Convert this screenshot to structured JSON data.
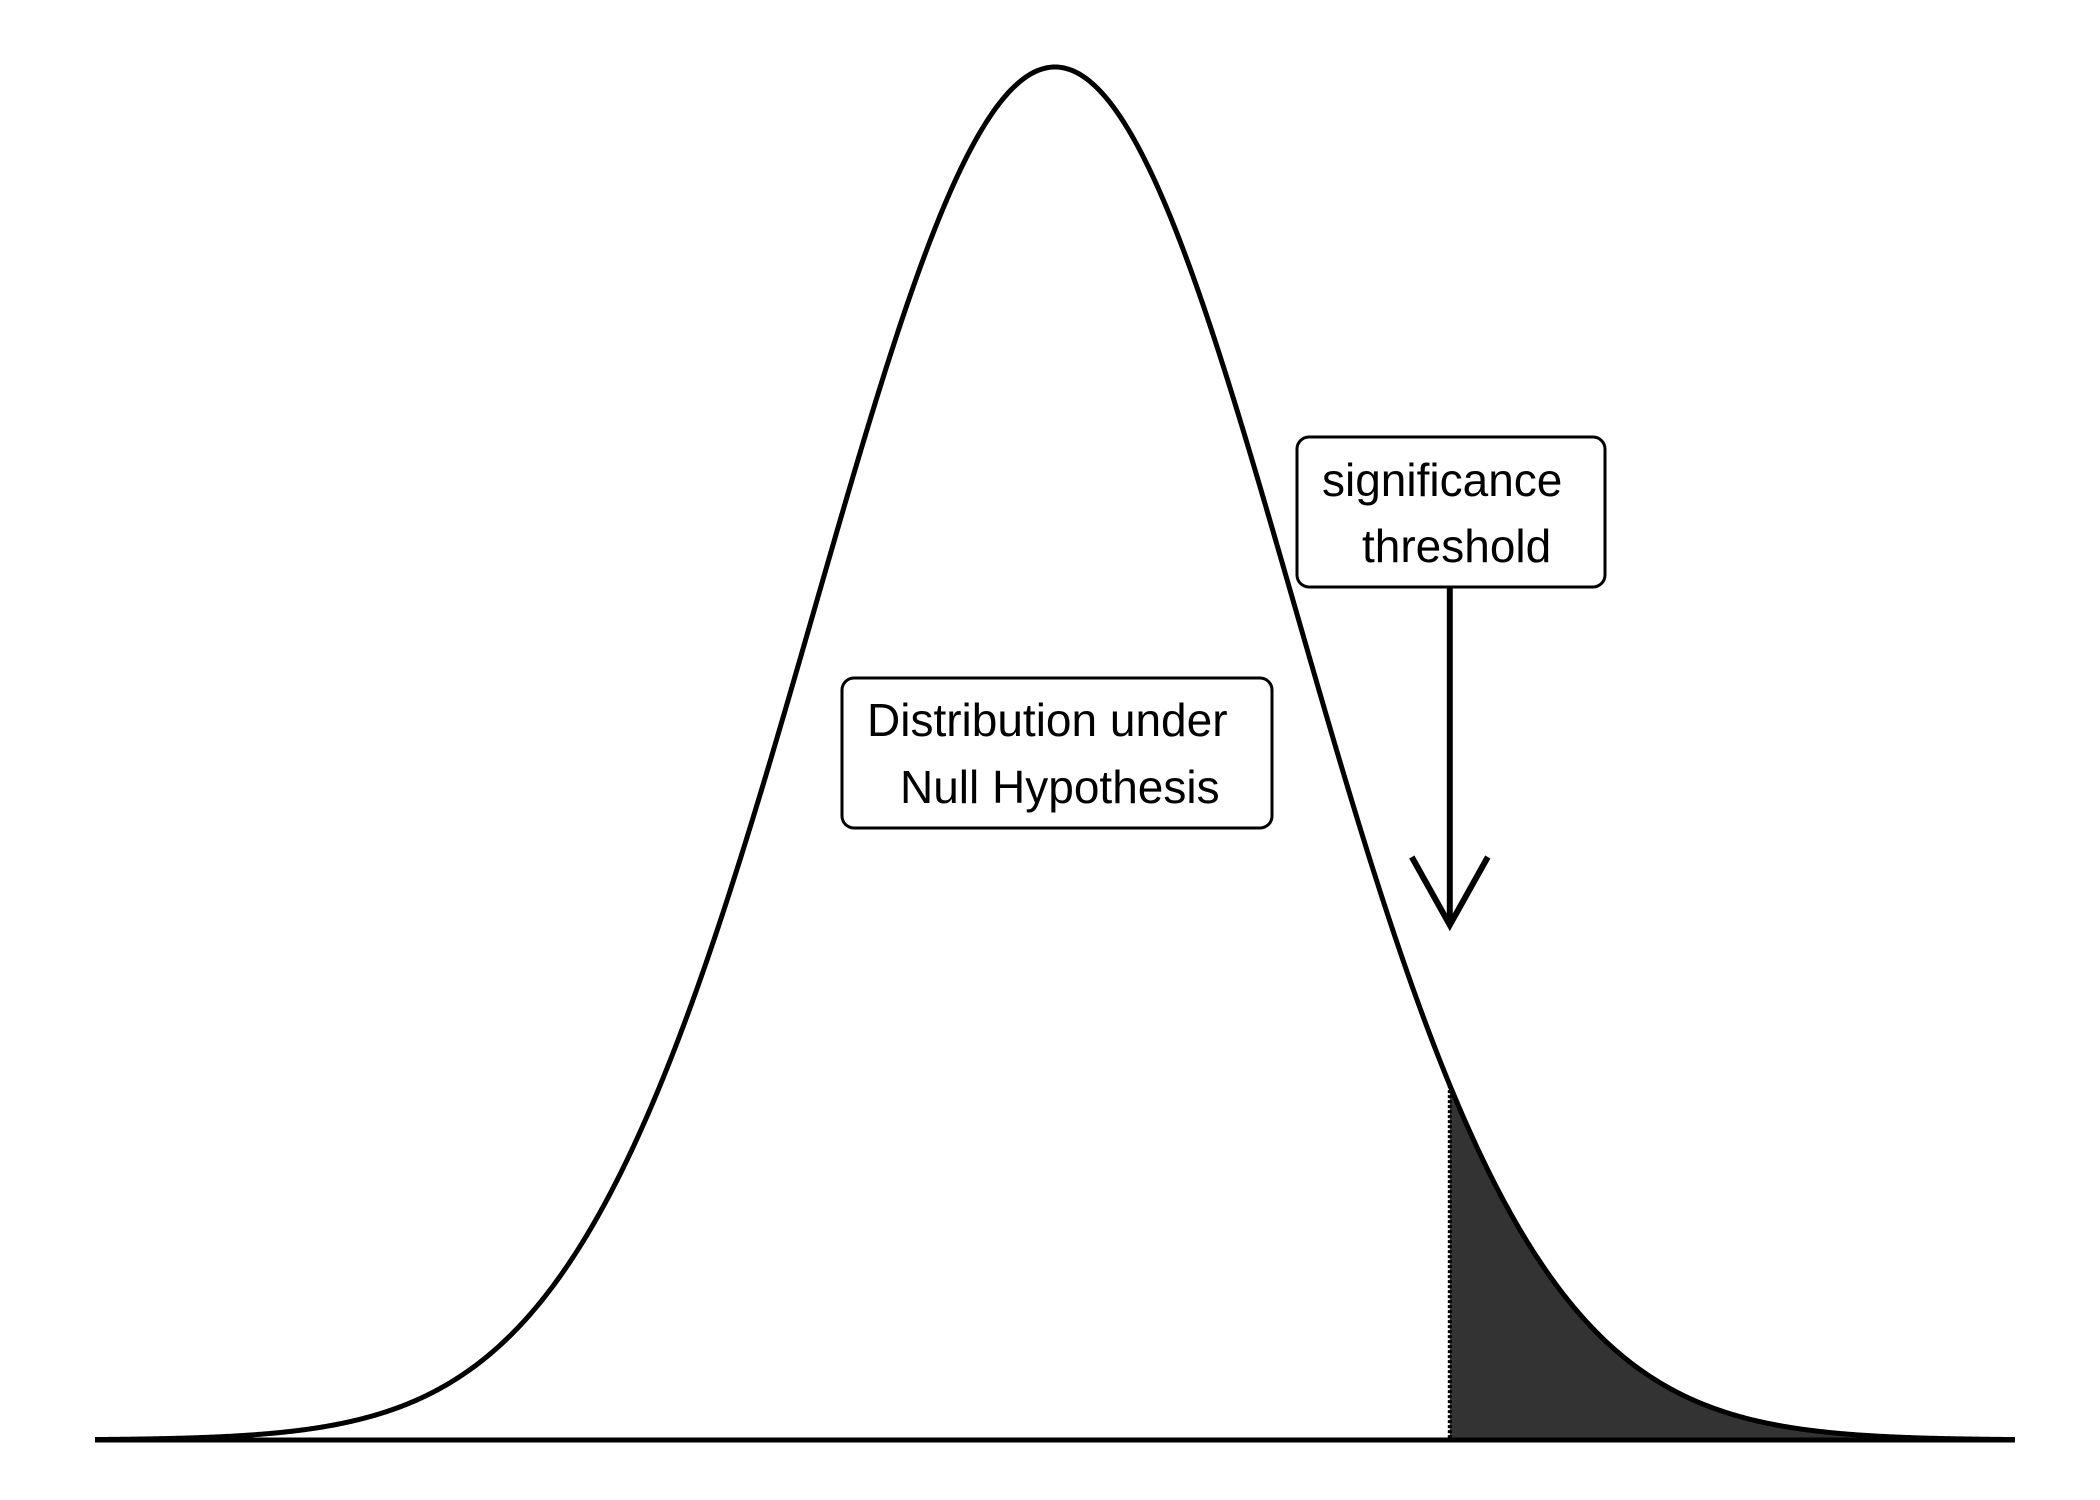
{
  "diagram": {
    "distribution_label": {
      "line1": "Distribution under",
      "line2": "Null Hypothesis"
    },
    "threshold_label": {
      "line1": "significance",
      "line2": "threshold"
    },
    "colors": {
      "curve": "#000000",
      "rejection_region": "#333333",
      "label_border": "#000000",
      "background": "#ffffff"
    },
    "threshold_z": 1.645
  }
}
